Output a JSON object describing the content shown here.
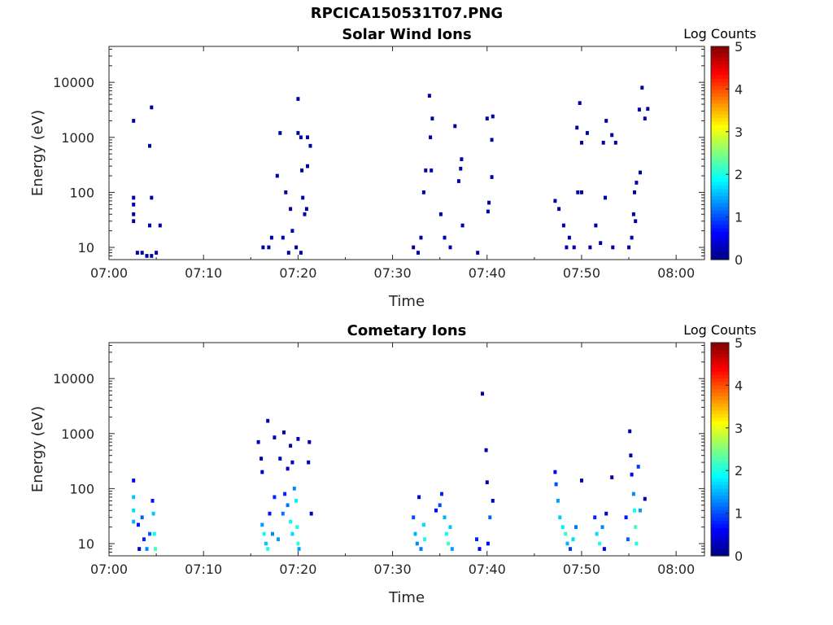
{
  "title": "RPCICA150531T07.PNG",
  "colors": {
    "axis": "#262626",
    "colormap": [
      "#00007f",
      "#0000ff",
      "#007fff",
      "#00ffff",
      "#7fff7f",
      "#ffff00",
      "#ff7f00",
      "#ff0000",
      "#7f0000"
    ]
  },
  "chart_data": [
    {
      "type": "heatmap",
      "title": "Solar Wind Ions",
      "xlabel": "Time",
      "ylabel": "Energy (eV)",
      "yscale": "log",
      "ylim": [
        6,
        45000
      ],
      "xlim": [
        "07:00",
        "08:03"
      ],
      "xticks": [
        "07:00",
        "07:10",
        "07:20",
        "07:30",
        "07:40",
        "07:50",
        "08:00"
      ],
      "yticks": [
        10,
        100,
        1000,
        10000
      ],
      "colorbar_label": "Log Counts",
      "clim": [
        0,
        5
      ],
      "cbar_ticks": [
        0,
        1,
        2,
        3,
        4,
        5
      ],
      "grid": false,
      "cells": [
        [
          "07:02.6",
          2000,
          0.2
        ],
        [
          "07:04.5",
          3500,
          0.2
        ],
        [
          "07:04.3",
          700,
          0.2
        ],
        [
          "07:02.6",
          80,
          0.2
        ],
        [
          "07:02.6",
          60,
          0.2
        ],
        [
          "07:02.6",
          40,
          0.2
        ],
        [
          "07:02.6",
          30,
          0.2
        ],
        [
          "07:04.5",
          80,
          0.2
        ],
        [
          "07:04.3",
          25,
          0.2
        ],
        [
          "07:05.4",
          25,
          0.2
        ],
        [
          "07:03",
          8,
          0.2
        ],
        [
          "07:03.5",
          8,
          0.2
        ],
        [
          "07:04",
          7,
          0.2
        ],
        [
          "07:04.5",
          7,
          0.2
        ],
        [
          "07:05",
          8,
          0.2
        ],
        [
          "07:16.3",
          10,
          0.2
        ],
        [
          "07:16.9",
          10,
          0.2
        ],
        [
          "07:17.2",
          15,
          0.2
        ],
        [
          "07:17.8",
          200,
          0.2
        ],
        [
          "07:18.1",
          1200,
          0.2
        ],
        [
          "07:18.4",
          15,
          0.2
        ],
        [
          "07:19",
          8,
          0.2
        ],
        [
          "07:18.7",
          100,
          0.2
        ],
        [
          "07:19.2",
          50,
          0.2
        ],
        [
          "07:19.4",
          20,
          0.2
        ],
        [
          "07:19.8",
          10,
          0.2
        ],
        [
          "07:20",
          5000,
          0.2
        ],
        [
          "07:20",
          1200,
          0.2
        ],
        [
          "07:20.3",
          1000,
          0.2
        ],
        [
          "07:20.5",
          80,
          0.2
        ],
        [
          "07:20.7",
          40,
          0.2
        ],
        [
          "07:20.4",
          250,
          0.2
        ],
        [
          "07:21",
          300,
          0.2
        ],
        [
          "07:21.3",
          700,
          0.2
        ],
        [
          "07:21",
          1000,
          0.2
        ],
        [
          "07:20.9",
          50,
          0.2
        ],
        [
          "07:20.3",
          8,
          0.2
        ],
        [
          "07:32.2",
          10,
          0.2
        ],
        [
          "07:32.7",
          8,
          0.2
        ],
        [
          "07:33",
          15,
          0.2
        ],
        [
          "07:33.5",
          250,
          0.2
        ],
        [
          "07:33.3",
          100,
          0.2
        ],
        [
          "07:33.9",
          5700,
          0.2
        ],
        [
          "07:34.2",
          2200,
          0.2
        ],
        [
          "07:34",
          1000,
          0.2
        ],
        [
          "07:34.1",
          250,
          0.2
        ],
        [
          "07:35.1",
          40,
          0.2
        ],
        [
          "07:35.5",
          15,
          0.2
        ],
        [
          "07:36.1",
          10,
          0.2
        ],
        [
          "07:36.6",
          1600,
          0.2
        ],
        [
          "07:37.3",
          400,
          0.2
        ],
        [
          "07:37.2",
          270,
          0.2
        ],
        [
          "07:37",
          160,
          0.2
        ],
        [
          "07:37.4",
          25,
          0.2
        ],
        [
          "07:39",
          8,
          0.2
        ],
        [
          "07:40",
          2200,
          0.2
        ],
        [
          "07:40.6",
          2400,
          0.2
        ],
        [
          "07:40.5",
          900,
          0.2
        ],
        [
          "07:40.5",
          190,
          0.2
        ],
        [
          "07:40.2",
          65,
          0.2
        ],
        [
          "07:40.1",
          45,
          0.2
        ],
        [
          "07:47.2",
          70,
          0.2
        ],
        [
          "07:47.6",
          50,
          0.2
        ],
        [
          "07:48.1",
          25,
          0.2
        ],
        [
          "07:48.4",
          10,
          0.2
        ],
        [
          "07:48.7",
          15,
          0.2
        ],
        [
          "07:49.2",
          10,
          0.2
        ],
        [
          "07:49.5",
          1500,
          0.2
        ],
        [
          "07:49.6",
          100,
          0.2
        ],
        [
          "07:49.8",
          4200,
          0.2
        ],
        [
          "07:50",
          800,
          0.2
        ],
        [
          "07:50",
          100,
          0.2
        ],
        [
          "07:50.6",
          1200,
          0.2
        ],
        [
          "07:50.9",
          10,
          0.2
        ],
        [
          "07:51.5",
          25,
          0.2
        ],
        [
          "07:52",
          12,
          0.2
        ],
        [
          "07:52.5",
          80,
          0.2
        ],
        [
          "07:52.6",
          2000,
          0.2
        ],
        [
          "07:52.3",
          800,
          0.2
        ],
        [
          "07:53.2",
          1100,
          0.2
        ],
        [
          "07:53.6",
          800,
          0.2
        ],
        [
          "07:53.3",
          10,
          0.2
        ],
        [
          "07:55",
          10,
          0.2
        ],
        [
          "07:55.3",
          15,
          0.2
        ],
        [
          "07:55.5",
          40,
          0.2
        ],
        [
          "07:55.7",
          30,
          0.2
        ],
        [
          "07:55.6",
          100,
          0.2
        ],
        [
          "07:55.8",
          150,
          0.2
        ],
        [
          "07:56.2",
          230,
          0.2
        ],
        [
          "07:56.4",
          8000,
          0.2
        ],
        [
          "07:56.1",
          3200,
          0.2
        ],
        [
          "07:56.7",
          2200,
          0.2
        ],
        [
          "07:57",
          3300,
          0.2
        ]
      ]
    },
    {
      "type": "heatmap",
      "title": "Cometary Ions",
      "xlabel": "Time",
      "ylabel": "Energy (eV)",
      "yscale": "log",
      "ylim": [
        6,
        45000
      ],
      "xlim": [
        "07:00",
        "08:03"
      ],
      "xticks": [
        "07:00",
        "07:10",
        "07:20",
        "07:30",
        "07:40",
        "07:50",
        "08:00"
      ],
      "yticks": [
        10,
        100,
        1000,
        10000
      ],
      "colorbar_label": "Log Counts",
      "clim": [
        0,
        5
      ],
      "cbar_ticks": [
        0,
        1,
        2,
        3,
        4,
        5
      ],
      "grid": false,
      "cells": [
        [
          "07:02.6",
          140,
          0.6
        ],
        [
          "07:02.6",
          70,
          1.6
        ],
        [
          "07:02.6",
          40,
          1.7
        ],
        [
          "07:02.6",
          25,
          1.5
        ],
        [
          "07:03.1",
          22,
          0.7
        ],
        [
          "07:03.5",
          30,
          1.1
        ],
        [
          "07:03.7",
          12,
          0.8
        ],
        [
          "07:04",
          8,
          1.3
        ],
        [
          "07:04.3",
          15,
          1.1
        ],
        [
          "07:04.6",
          60,
          0.7
        ],
        [
          "07:04.7",
          35,
          1.6
        ],
        [
          "07:04.8",
          15,
          1.9
        ],
        [
          "07:04.9",
          8,
          2.2
        ],
        [
          "07:03.2",
          8,
          0.4
        ],
        [
          "07:15.8",
          700,
          0.3
        ],
        [
          "07:16.1",
          350,
          0.3
        ],
        [
          "07:16.2",
          200,
          0.3
        ],
        [
          "07:16.8",
          1700,
          0.3
        ],
        [
          "07:17.5",
          850,
          0.3
        ],
        [
          "07:18.1",
          350,
          0.3
        ],
        [
          "07:18.5",
          1050,
          0.3
        ],
        [
          "07:18.9",
          230,
          0.3
        ],
        [
          "07:19.2",
          600,
          0.3
        ],
        [
          "07:19.4",
          300,
          0.3
        ],
        [
          "07:20",
          800,
          0.3
        ],
        [
          "07:21.1",
          300,
          0.3
        ],
        [
          "07:21.2",
          700,
          0.3
        ],
        [
          "07:21.4",
          35,
          0.3
        ],
        [
          "07:16.2",
          22,
          1.4
        ],
        [
          "07:16.4",
          15,
          1.9
        ],
        [
          "07:16.6",
          10,
          1.6
        ],
        [
          "07:16.8",
          8,
          2.0
        ],
        [
          "07:17",
          35,
          0.7
        ],
        [
          "07:17.3",
          15,
          1.3
        ],
        [
          "07:17.5",
          70,
          0.8
        ],
        [
          "07:17.9",
          12,
          1.4
        ],
        [
          "07:18.4",
          35,
          1.2
        ],
        [
          "07:18.6",
          80,
          0.8
        ],
        [
          "07:18.9",
          50,
          1.2
        ],
        [
          "07:19.2",
          25,
          1.9
        ],
        [
          "07:19.4",
          15,
          1.7
        ],
        [
          "07:19.6",
          100,
          1.3
        ],
        [
          "07:19.8",
          60,
          1.8
        ],
        [
          "07:19.9",
          20,
          2.0
        ],
        [
          "07:20",
          10,
          2.1
        ],
        [
          "07:20.1",
          8,
          1.4
        ],
        [
          "07:32.2",
          30,
          1.0
        ],
        [
          "07:32.4",
          15,
          1.5
        ],
        [
          "07:32.6",
          10,
          1.3
        ],
        [
          "07:32.8",
          70,
          0.5
        ],
        [
          "07:33",
          8,
          1.2
        ],
        [
          "07:33.3",
          22,
          1.7
        ],
        [
          "07:33.4",
          12,
          2.0
        ],
        [
          "07:34.6",
          40,
          0.6
        ],
        [
          "07:35",
          50,
          1.0
        ],
        [
          "07:35.2",
          80,
          0.8
        ],
        [
          "07:35.5",
          30,
          1.5
        ],
        [
          "07:35.7",
          15,
          1.9
        ],
        [
          "07:35.9",
          10,
          2.2
        ],
        [
          "07:36.1",
          20,
          1.6
        ],
        [
          "07:36.3",
          8,
          1.4
        ],
        [
          "07:38.9",
          12,
          0.8
        ],
        [
          "07:39.2",
          8,
          0.6
        ],
        [
          "07:39.5",
          5300,
          0.2
        ],
        [
          "07:39.9",
          500,
          0.2
        ],
        [
          "07:40",
          130,
          0.2
        ],
        [
          "07:40.3",
          30,
          1.1
        ],
        [
          "07:40.1",
          10,
          0.5
        ],
        [
          "07:40.6",
          60,
          0.3
        ],
        [
          "07:47.2",
          200,
          0.6
        ],
        [
          "07:47.3",
          120,
          1.0
        ],
        [
          "07:47.5",
          60,
          1.4
        ],
        [
          "07:47.7",
          30,
          1.6
        ],
        [
          "07:48",
          20,
          1.8
        ],
        [
          "07:48.3",
          15,
          2.1
        ],
        [
          "07:48.5",
          10,
          1.5
        ],
        [
          "07:48.8",
          8,
          0.9
        ],
        [
          "07:49.1",
          12,
          1.7
        ],
        [
          "07:49.4",
          20,
          1.2
        ],
        [
          "07:50",
          140,
          0.3
        ],
        [
          "07:51.4",
          30,
          0.8
        ],
        [
          "07:51.6",
          15,
          1.7
        ],
        [
          "07:51.9",
          10,
          2.0
        ],
        [
          "07:52.2",
          20,
          1.3
        ],
        [
          "07:52.4",
          8,
          0.6
        ],
        [
          "07:52.6",
          35,
          0.4
        ],
        [
          "07:53.2",
          160,
          0.2
        ],
        [
          "07:54.7",
          30,
          0.7
        ],
        [
          "07:54.9",
          12,
          1.1
        ],
        [
          "07:55.1",
          1100,
          0.2
        ],
        [
          "07:55.2",
          400,
          0.3
        ],
        [
          "07:55.3",
          180,
          0.6
        ],
        [
          "07:55.5",
          80,
          1.3
        ],
        [
          "07:55.6",
          40,
          1.9
        ],
        [
          "07:55.7",
          20,
          2.2
        ],
        [
          "07:55.8",
          10,
          2.0
        ],
        [
          "07:56",
          250,
          0.9
        ],
        [
          "07:56.2",
          40,
          1.4
        ],
        [
          "07:56.7",
          65,
          0.2
        ]
      ]
    }
  ]
}
